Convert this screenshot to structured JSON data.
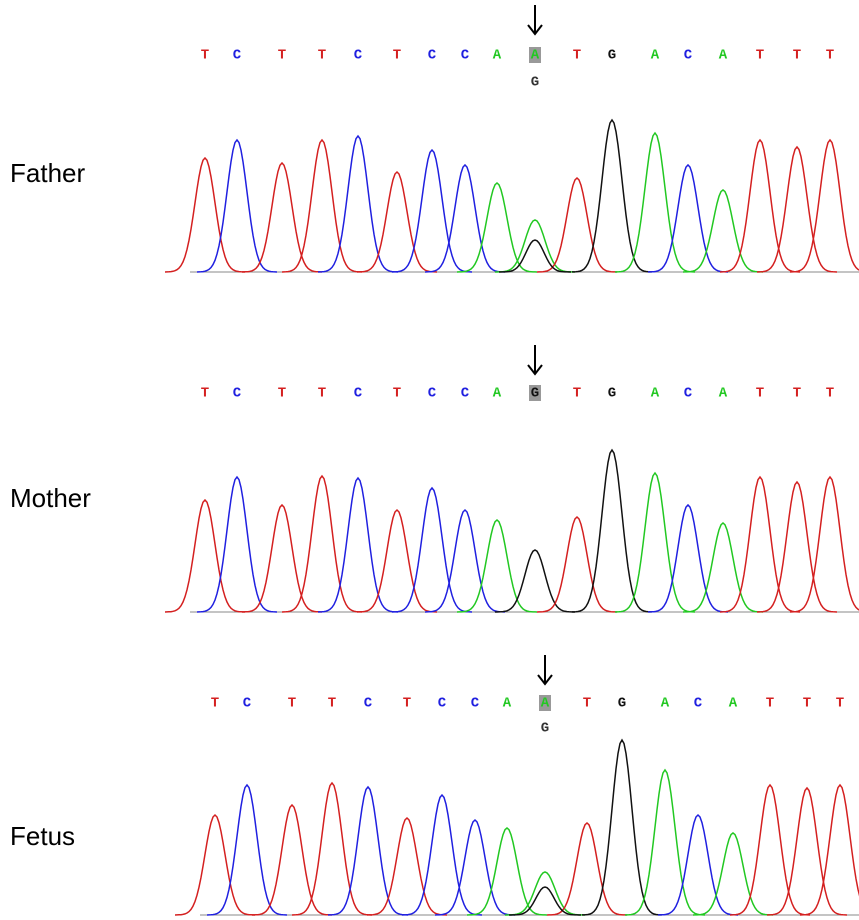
{
  "panels": [
    {
      "label": "Father",
      "bases": [
        "T",
        "C",
        "T",
        "T",
        "C",
        "T",
        "C",
        "C",
        "A",
        "A",
        "T",
        "G",
        "A",
        "C",
        "A",
        "T",
        "T",
        "T"
      ],
      "secondary": "G"
    },
    {
      "label": "Mother",
      "bases": [
        "T",
        "C",
        "T",
        "T",
        "C",
        "T",
        "C",
        "C",
        "A",
        "G",
        "T",
        "G",
        "A",
        "C",
        "A",
        "T",
        "T",
        "T"
      ]
    },
    {
      "label": "Fetus",
      "bases": [
        "T",
        "C",
        "T",
        "T",
        "C",
        "T",
        "C",
        "C",
        "A",
        "A",
        "T",
        "G",
        "A",
        "C",
        "A",
        "T",
        "T",
        "T"
      ],
      "secondary": "G"
    }
  ]
}
